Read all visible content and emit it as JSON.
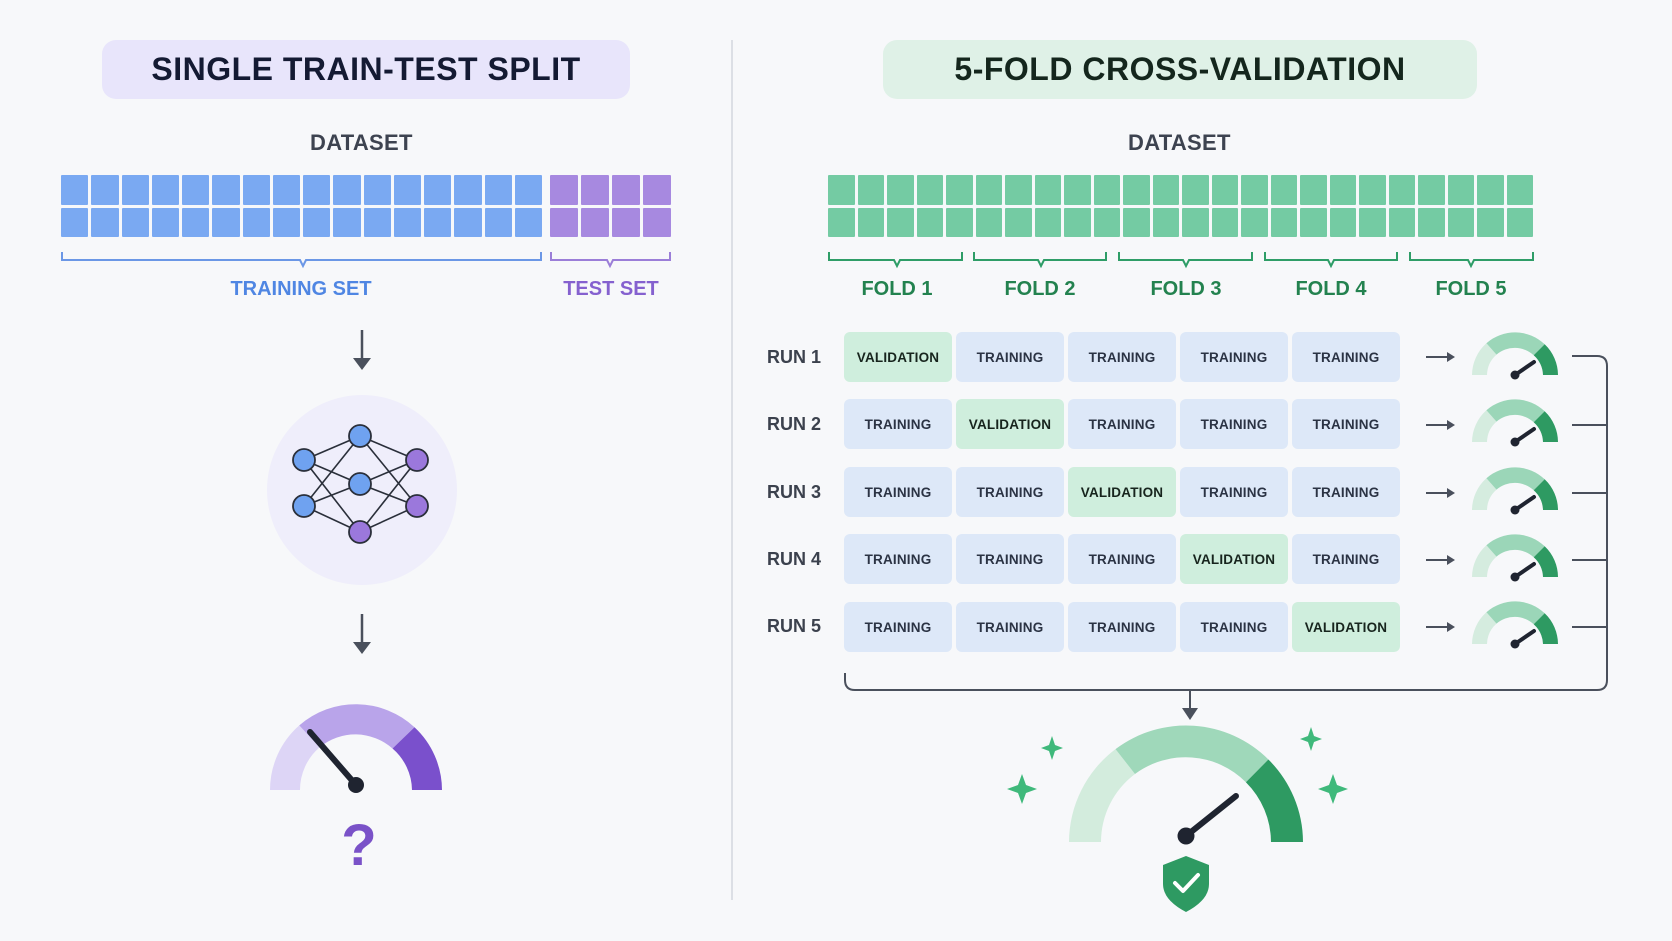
{
  "left_panel": {
    "title": "SINGLE TRAIN-TEST SPLIT",
    "dataset_label": "DATASET",
    "training_label": "TRAINING SET",
    "test_label": "TEST SET",
    "question_mark": "?"
  },
  "right_panel": {
    "title": "5-FOLD CROSS-VALIDATION",
    "dataset_label": "DATASET",
    "folds": [
      "FOLD 1",
      "FOLD 2",
      "FOLD 3",
      "FOLD 4",
      "FOLD 5"
    ],
    "runs": [
      {
        "label": "RUN 1",
        "cells": [
          "VALIDATION",
          "TRAINING",
          "TRAINING",
          "TRAINING",
          "TRAINING"
        ]
      },
      {
        "label": "RUN 2",
        "cells": [
          "TRAINING",
          "VALIDATION",
          "TRAINING",
          "TRAINING",
          "TRAINING"
        ]
      },
      {
        "label": "RUN 3",
        "cells": [
          "TRAINING",
          "TRAINING",
          "VALIDATION",
          "TRAINING",
          "TRAINING"
        ]
      },
      {
        "label": "RUN 4",
        "cells": [
          "TRAINING",
          "TRAINING",
          "TRAINING",
          "VALIDATION",
          "TRAINING"
        ]
      },
      {
        "label": "RUN 5",
        "cells": [
          "TRAINING",
          "TRAINING",
          "TRAINING",
          "TRAINING",
          "VALIDATION"
        ]
      }
    ]
  },
  "colors": {
    "training_blue": "#7aa9f2",
    "test_purple": "#a789e0",
    "cv_green": "#74cba3",
    "validation_cell": "#cfeedd",
    "training_cell": "#dde8f8"
  },
  "icons": [
    "arrow-down-icon",
    "neural-network-icon",
    "gauge-icon",
    "arrow-right-icon",
    "sparkle-icon",
    "shield-check-icon"
  ]
}
